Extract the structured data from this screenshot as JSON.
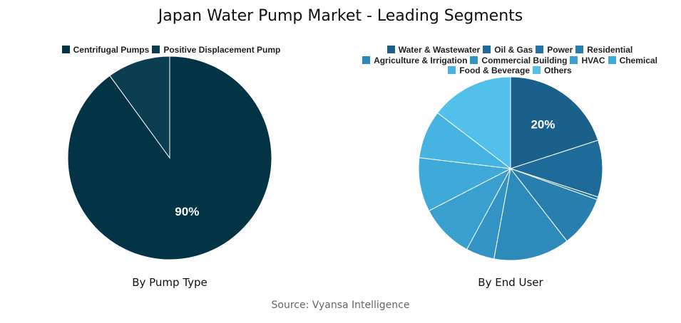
{
  "title": "Japan Water Pump Market - Leading Segments",
  "source": "Source: Vyansa Intelligence",
  "chart_data": [
    {
      "type": "pie",
      "subtitle": "By Pump Type",
      "categories": [
        "Centrifugal Pumps",
        "Positive Displacement Pump"
      ],
      "values": [
        90,
        10
      ],
      "colors": [
        "#033446",
        "#0b3e50"
      ],
      "data_labels": [
        "90%",
        ""
      ],
      "legend": "top"
    },
    {
      "type": "pie",
      "subtitle": "By End User",
      "categories": [
        "Water & Wastewater",
        "Oil & Gas",
        "Power",
        "Residential",
        "Agriculture & Irrigation",
        "Commercial Building",
        "HVAC",
        "Chemical",
        "Food & Beverage",
        "Others"
      ],
      "values": [
        20,
        10,
        0.5,
        9,
        13.4,
        5,
        9.5,
        9.5,
        8.5,
        14.6
      ],
      "colors": [
        "#1b5f8b",
        "#1e6b99",
        "#2274a3",
        "#287fae",
        "#2d8aba",
        "#3293c4",
        "#389fcf",
        "#3fa9d9",
        "#46b3e2",
        "#52c0eb"
      ],
      "data_labels": [
        "20%",
        "",
        "",
        "",
        "",
        "",
        "",
        "",
        "",
        ""
      ],
      "legend": "top"
    }
  ]
}
